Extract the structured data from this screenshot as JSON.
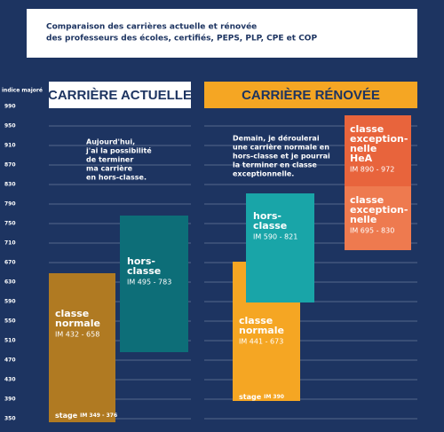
{
  "title": [
    "Comparaison des carrières actuelle et rénovée",
    "des professeurs des écoles, certifiés, PEPS, PLP, CPE et COP"
  ],
  "axis": {
    "label": "indice majoré",
    "ticks": [
      "990",
      "950",
      "910",
      "870",
      "830",
      "790",
      "750",
      "710",
      "670",
      "630",
      "590",
      "550",
      "510",
      "470",
      "430",
      "390",
      "350"
    ]
  },
  "actuelle": {
    "header": "CARRIÈRE ACTUELLE",
    "note": [
      "Aujourd'hui,",
      "j'ai la possibilité",
      "de terminer",
      "ma carrière",
      "en hors-classe."
    ],
    "blocks": [
      {
        "name": [
          "classe",
          "normale"
        ],
        "range": "IM 432 - 658"
      },
      {
        "name": [
          "hors-",
          "classe"
        ],
        "range": "IM 495 - 783"
      }
    ],
    "stage": {
      "name": "stage",
      "range": "IM 349 - 376"
    }
  },
  "renovee": {
    "header": "CARRIÈRE RÉNOVÉE",
    "note": [
      "Demain, je déroulerai",
      "une carrière normale en",
      "hors-classe et je pourrai",
      "la terminer en classe",
      "exceptionnelle."
    ],
    "blocks": [
      {
        "name": [
          "classe",
          "normale"
        ],
        "range": "IM 441 - 673"
      },
      {
        "name": [
          "hors-",
          "classe"
        ],
        "range": "IM 590 - 821"
      },
      {
        "name": [
          "classe",
          "exception-",
          "nelle",
          "HeA"
        ],
        "range": "IM 890 - 972"
      },
      {
        "name": [
          "classe",
          "exception-",
          "nelle"
        ],
        "range": "IM 695 - 830"
      }
    ],
    "stage": {
      "name": "stage",
      "range": "IM 390"
    }
  }
}
